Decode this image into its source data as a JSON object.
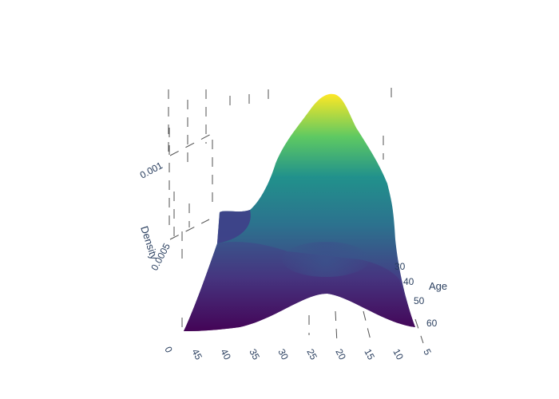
{
  "chart_data": {
    "type": "surface",
    "title": "",
    "colorscale": "viridis",
    "colors": [
      "#440154",
      "#3b528b",
      "#21918c",
      "#5ec962",
      "#fde725"
    ],
    "z_axis": {
      "title": "Density",
      "ticks": [
        "0.0005",
        "0.001"
      ],
      "range": [
        0,
        0.0014
      ]
    },
    "x_axis": {
      "title": "",
      "ticks": [
        "0",
        "45",
        "40",
        "35",
        "30",
        "25",
        "20",
        "15",
        "10",
        "5"
      ],
      "range": [
        0,
        50
      ]
    },
    "y_axis": {
      "title": "Age",
      "ticks": [
        "30",
        "40",
        "50",
        "60"
      ],
      "range": [
        20,
        65
      ]
    },
    "peak": {
      "x": 22,
      "y": 20,
      "z": 0.00138
    },
    "shoulder": {
      "x": 45,
      "y": 25,
      "z": 0.00068
    }
  }
}
